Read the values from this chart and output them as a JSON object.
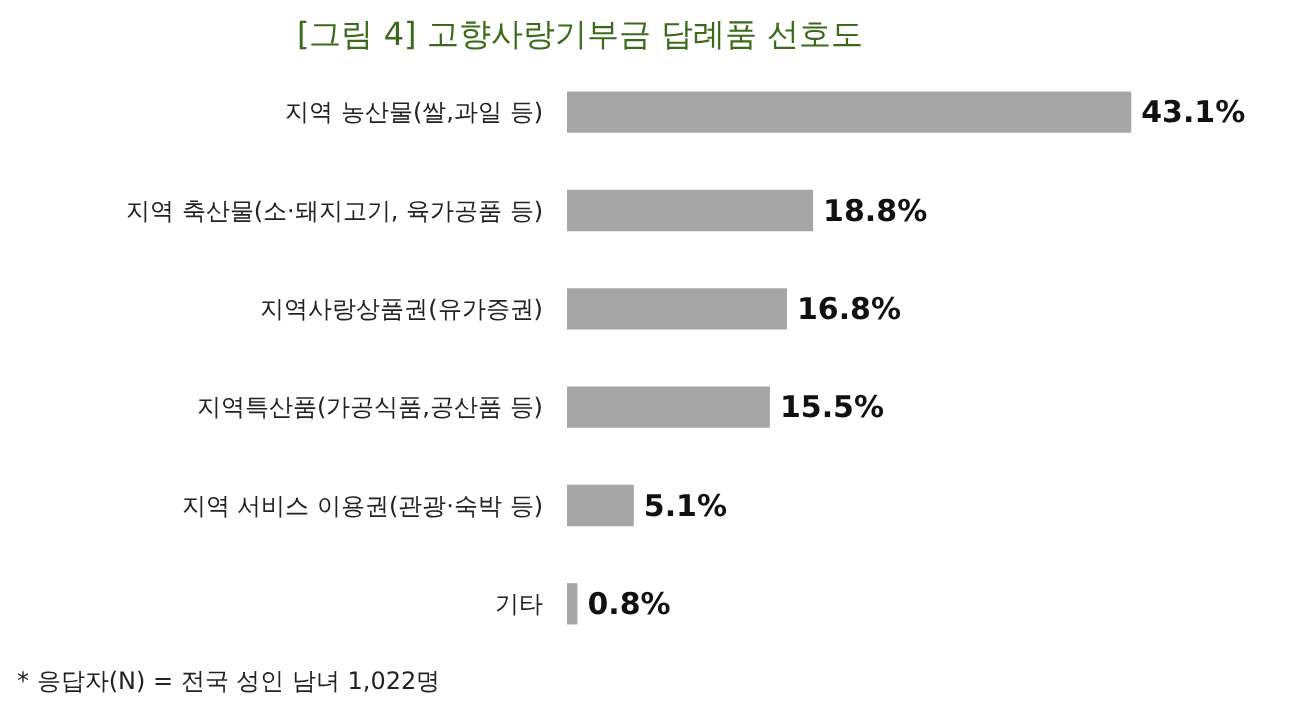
{
  "chart_data": {
    "type": "bar",
    "orientation": "horizontal",
    "title": "[그림 4] 고향사랑기부금 답례품 선호도",
    "categories": [
      "지역 농산물(쌀,과일 등)",
      "지역 축산물(소·돼지고기, 육가공품 등)",
      "지역사랑상품권(유가증권)",
      "지역특산품(가공식품,공산품 등)",
      "지역 서비스 이용권(관광·숙박 등)",
      "기타"
    ],
    "values": [
      43.1,
      18.8,
      16.8,
      15.5,
      5.1,
      0.8
    ],
    "value_labels": [
      "43.1%",
      "18.8%",
      "16.8%",
      "15.5%",
      "5.1%",
      "0.8%"
    ],
    "color": "#a6a6a6",
    "annotations": [
      "* 응답자(N) = 전국 성인 남녀 1,022명"
    ]
  }
}
